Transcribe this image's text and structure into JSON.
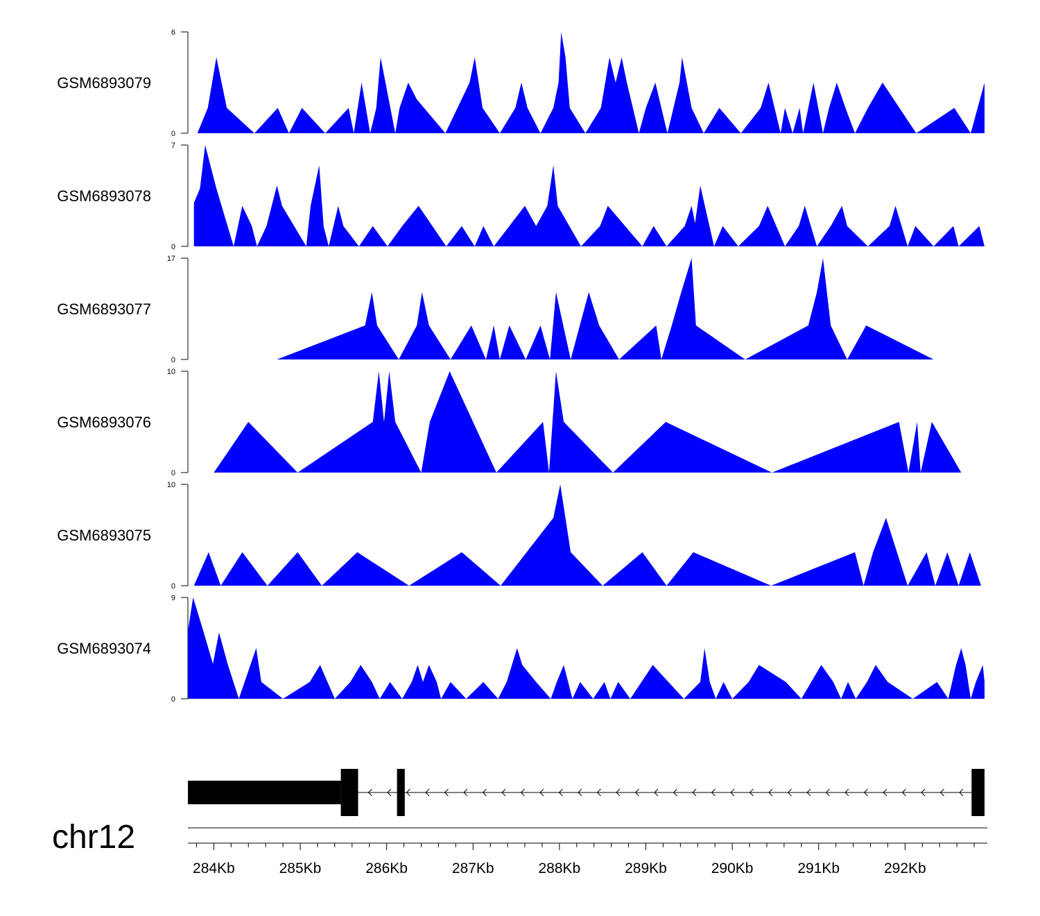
{
  "chart_data": {
    "type": "area",
    "title": "",
    "chromosome": "chr12",
    "x_unit": "bp",
    "xlim": [
      283700,
      292920
    ],
    "x_ticks": [
      284000,
      285000,
      286000,
      287000,
      288000,
      289000,
      290000,
      291000,
      292000
    ],
    "x_tick_labels": [
      "284Kb",
      "285Kb",
      "286Kb",
      "287Kb",
      "288Kb",
      "289Kb",
      "290Kb",
      "291Kb",
      "292Kb"
    ],
    "minor_tick_step": 200,
    "fill_color": "#0000ff",
    "tracks": [
      {
        "name": "GSM6893079",
        "ymax": 6,
        "ymin_label": "0",
        "ymax_label": "6",
        "points": [
          [
            283810,
            0
          ],
          [
            283930,
            1.5
          ],
          [
            284030,
            4.5
          ],
          [
            284150,
            1.5
          ],
          [
            284470,
            0
          ],
          [
            284740,
            1.5
          ],
          [
            284870,
            0
          ],
          [
            285020,
            1.5
          ],
          [
            285290,
            0
          ],
          [
            285560,
            1.5
          ],
          [
            285620,
            0
          ],
          [
            285710,
            3
          ],
          [
            285810,
            0
          ],
          [
            285880,
            1.5
          ],
          [
            285930,
            4.5
          ],
          [
            286100,
            0
          ],
          [
            286150,
            1.5
          ],
          [
            286250,
            3
          ],
          [
            286350,
            2
          ],
          [
            286680,
            0
          ],
          [
            286960,
            3
          ],
          [
            287020,
            4.5
          ],
          [
            287110,
            1.5
          ],
          [
            287310,
            0
          ],
          [
            287490,
            1.5
          ],
          [
            287560,
            3
          ],
          [
            287630,
            1.5
          ],
          [
            287780,
            0
          ],
          [
            287930,
            1.5
          ],
          [
            287990,
            3
          ],
          [
            288020,
            6
          ],
          [
            288070,
            4.5
          ],
          [
            288120,
            1.5
          ],
          [
            288300,
            0
          ],
          [
            288480,
            1.5
          ],
          [
            288580,
            4.5
          ],
          [
            288650,
            3
          ],
          [
            288720,
            4.5
          ],
          [
            288780,
            3
          ],
          [
            288920,
            0
          ],
          [
            289000,
            1.5
          ],
          [
            289110,
            3
          ],
          [
            289250,
            0
          ],
          [
            289390,
            3
          ],
          [
            289420,
            4.5
          ],
          [
            289530,
            1.5
          ],
          [
            289670,
            0
          ],
          [
            289850,
            1.5
          ],
          [
            290100,
            0
          ],
          [
            290330,
            1.5
          ],
          [
            290420,
            3
          ],
          [
            290560,
            0
          ],
          [
            290610,
            1.5
          ],
          [
            290700,
            0
          ],
          [
            290780,
            1.5
          ],
          [
            290820,
            0
          ],
          [
            290940,
            3
          ],
          [
            291050,
            0
          ],
          [
            291120,
            1.5
          ],
          [
            291210,
            3
          ],
          [
            291310,
            1.5
          ],
          [
            291420,
            0
          ],
          [
            291570,
            1.5
          ],
          [
            291740,
            3
          ],
          [
            292130,
            0
          ],
          [
            292570,
            1.5
          ],
          [
            292760,
            0
          ],
          [
            292920,
            3
          ]
        ]
      },
      {
        "name": "GSM6893078",
        "ymax": 7,
        "ymin_label": "0",
        "ymax_label": "7",
        "points": [
          [
            283770,
            3
          ],
          [
            283840,
            4
          ],
          [
            283900,
            7
          ],
          [
            284030,
            4
          ],
          [
            284230,
            0
          ],
          [
            284330,
            2.8
          ],
          [
            284440,
            1.4
          ],
          [
            284500,
            0
          ],
          [
            284610,
            1.4
          ],
          [
            284730,
            4.2
          ],
          [
            284790,
            2.8
          ],
          [
            285070,
            0
          ],
          [
            285120,
            2.8
          ],
          [
            285220,
            5.6
          ],
          [
            285270,
            1.4
          ],
          [
            285330,
            0
          ],
          [
            285440,
            2.8
          ],
          [
            285500,
            1.4
          ],
          [
            285680,
            0
          ],
          [
            285840,
            1.4
          ],
          [
            286010,
            0
          ],
          [
            286180,
            1.4
          ],
          [
            286370,
            2.8
          ],
          [
            286690,
            0
          ],
          [
            286870,
            1.4
          ],
          [
            287020,
            0
          ],
          [
            287120,
            1.4
          ],
          [
            287240,
            0
          ],
          [
            287600,
            2.8
          ],
          [
            287730,
            1.4
          ],
          [
            287860,
            2.8
          ],
          [
            287930,
            5.6
          ],
          [
            287980,
            2.8
          ],
          [
            288250,
            0
          ],
          [
            288470,
            1.4
          ],
          [
            288560,
            2.8
          ],
          [
            288960,
            0
          ],
          [
            289090,
            1.4
          ],
          [
            289240,
            0
          ],
          [
            289450,
            1.4
          ],
          [
            289530,
            2.8
          ],
          [
            289570,
            1.6
          ],
          [
            289630,
            4.2
          ],
          [
            289790,
            0
          ],
          [
            289890,
            1.4
          ],
          [
            290070,
            0
          ],
          [
            290310,
            1.4
          ],
          [
            290410,
            2.8
          ],
          [
            290610,
            0
          ],
          [
            290770,
            1.4
          ],
          [
            290840,
            2.8
          ],
          [
            290910,
            1.4
          ],
          [
            290980,
            0
          ],
          [
            291140,
            1.4
          ],
          [
            291270,
            2.8
          ],
          [
            291330,
            1.4
          ],
          [
            291570,
            0
          ],
          [
            291820,
            1.4
          ],
          [
            291890,
            2.8
          ],
          [
            292030,
            0
          ],
          [
            292120,
            1.4
          ],
          [
            292330,
            0
          ],
          [
            292560,
            1.4
          ],
          [
            292620,
            0
          ],
          [
            292860,
            1.4
          ],
          [
            292920,
            0
          ]
        ]
      },
      {
        "name": "GSM6893077",
        "ymax": 17,
        "ymin_label": "0",
        "ymax_label": "17",
        "points": [
          [
            284730,
            0
          ],
          [
            285750,
            5.7
          ],
          [
            285830,
            11.3
          ],
          [
            285890,
            5.7
          ],
          [
            286140,
            0
          ],
          [
            286350,
            5.7
          ],
          [
            286410,
            11.3
          ],
          [
            286490,
            5.7
          ],
          [
            286740,
            0
          ],
          [
            286980,
            5.7
          ],
          [
            287150,
            0
          ],
          [
            287240,
            5.7
          ],
          [
            287310,
            0
          ],
          [
            287420,
            5.7
          ],
          [
            287610,
            0
          ],
          [
            287780,
            5.7
          ],
          [
            287890,
            0
          ],
          [
            287960,
            11.3
          ],
          [
            288130,
            0
          ],
          [
            288340,
            11.3
          ],
          [
            288460,
            5.7
          ],
          [
            288690,
            0
          ],
          [
            289120,
            5.7
          ],
          [
            289180,
            0
          ],
          [
            289300,
            5.7
          ],
          [
            289410,
            11.3
          ],
          [
            289530,
            17
          ],
          [
            289580,
            5.7
          ],
          [
            290150,
            0
          ],
          [
            290880,
            5.7
          ],
          [
            290980,
            11.3
          ],
          [
            291050,
            17
          ],
          [
            291140,
            5.7
          ],
          [
            291330,
            0
          ],
          [
            291550,
            5.7
          ],
          [
            292330,
            0
          ]
        ]
      },
      {
        "name": "GSM6893076",
        "ymax": 10,
        "ymin_label": "0",
        "ymax_label": "10",
        "points": [
          [
            284000,
            0
          ],
          [
            284400,
            5
          ],
          [
            284970,
            0
          ],
          [
            285840,
            5
          ],
          [
            285910,
            10
          ],
          [
            285970,
            5
          ],
          [
            286030,
            10
          ],
          [
            286100,
            5
          ],
          [
            286400,
            0
          ],
          [
            286500,
            5
          ],
          [
            286730,
            10
          ],
          [
            287270,
            0
          ],
          [
            287810,
            5
          ],
          [
            287880,
            0
          ],
          [
            287960,
            10
          ],
          [
            288050,
            5
          ],
          [
            288620,
            0
          ],
          [
            289230,
            5
          ],
          [
            290460,
            0
          ],
          [
            291930,
            5
          ],
          [
            292040,
            0
          ],
          [
            292140,
            5
          ],
          [
            292180,
            0
          ],
          [
            292310,
            5
          ],
          [
            292650,
            0
          ]
        ]
      },
      {
        "name": "GSM6893075",
        "ymax": 10,
        "ymin_label": "0",
        "ymax_label": "10",
        "points": [
          [
            283770,
            0
          ],
          [
            283940,
            3.3
          ],
          [
            284080,
            0
          ],
          [
            284330,
            3.3
          ],
          [
            284620,
            0
          ],
          [
            284970,
            3.3
          ],
          [
            285250,
            0
          ],
          [
            285660,
            3.3
          ],
          [
            286260,
            0
          ],
          [
            286870,
            3.3
          ],
          [
            287320,
            0
          ],
          [
            287930,
            6.7
          ],
          [
            288010,
            10
          ],
          [
            288130,
            3.3
          ],
          [
            288500,
            0
          ],
          [
            288960,
            3.3
          ],
          [
            289240,
            0
          ],
          [
            289550,
            3.3
          ],
          [
            290450,
            0
          ],
          [
            291420,
            3.3
          ],
          [
            291520,
            0
          ],
          [
            291630,
            3.3
          ],
          [
            291780,
            6.7
          ],
          [
            292030,
            0
          ],
          [
            292250,
            3.3
          ],
          [
            292350,
            0
          ],
          [
            292490,
            3.3
          ],
          [
            292620,
            0
          ],
          [
            292750,
            3.3
          ],
          [
            292880,
            0
          ]
        ]
      },
      {
        "name": "GSM6893074",
        "ymax": 9,
        "ymin_label": "0",
        "ymax_label": "9",
        "points": [
          [
            283700,
            6
          ],
          [
            283760,
            9
          ],
          [
            283880,
            6
          ],
          [
            283990,
            3.1
          ],
          [
            284060,
            5.9
          ],
          [
            284160,
            3.1
          ],
          [
            284290,
            0
          ],
          [
            284490,
            4.5
          ],
          [
            284550,
            1.5
          ],
          [
            284800,
            0
          ],
          [
            285110,
            1.5
          ],
          [
            285230,
            3
          ],
          [
            285400,
            0
          ],
          [
            285580,
            1.5
          ],
          [
            285700,
            3
          ],
          [
            285830,
            1.5
          ],
          [
            285920,
            0
          ],
          [
            286040,
            1.5
          ],
          [
            286180,
            0
          ],
          [
            286290,
            1.5
          ],
          [
            286360,
            3
          ],
          [
            286420,
            1.5
          ],
          [
            286490,
            3
          ],
          [
            286580,
            1.5
          ],
          [
            286630,
            0
          ],
          [
            286740,
            1.5
          ],
          [
            286920,
            0
          ],
          [
            287120,
            1.5
          ],
          [
            287290,
            0
          ],
          [
            287390,
            1.5
          ],
          [
            287510,
            4.5
          ],
          [
            287570,
            3
          ],
          [
            287730,
            1.5
          ],
          [
            287900,
            0
          ],
          [
            287970,
            1.5
          ],
          [
            288050,
            3
          ],
          [
            288150,
            0
          ],
          [
            288240,
            1.5
          ],
          [
            288390,
            0
          ],
          [
            288520,
            1.5
          ],
          [
            288590,
            0
          ],
          [
            288680,
            1.5
          ],
          [
            288820,
            0
          ],
          [
            289080,
            3
          ],
          [
            289440,
            0
          ],
          [
            289630,
            1.5
          ],
          [
            289680,
            4.5
          ],
          [
            289740,
            1.5
          ],
          [
            289810,
            0
          ],
          [
            289900,
            1.5
          ],
          [
            290000,
            0
          ],
          [
            290190,
            1.5
          ],
          [
            290310,
            3
          ],
          [
            290620,
            1.5
          ],
          [
            290800,
            0
          ],
          [
            291030,
            3
          ],
          [
            291170,
            1.5
          ],
          [
            291260,
            0
          ],
          [
            291340,
            1.5
          ],
          [
            291430,
            0
          ],
          [
            291560,
            1.5
          ],
          [
            291660,
            3
          ],
          [
            291800,
            1.5
          ],
          [
            292090,
            0
          ],
          [
            292370,
            1.5
          ],
          [
            292500,
            0
          ],
          [
            292590,
            3
          ],
          [
            292650,
            4.5
          ],
          [
            292700,
            3
          ],
          [
            292760,
            0
          ],
          [
            292820,
            1.5
          ],
          [
            292900,
            3
          ],
          [
            292920,
            1.5
          ]
        ]
      }
    ],
    "gene_model": {
      "strand": "-",
      "blocks": [
        {
          "start": 283700,
          "end": 285470,
          "type": "utr"
        },
        {
          "start": 285470,
          "end": 285670,
          "type": "cds"
        },
        {
          "start": 286120,
          "end": 286210,
          "type": "cds"
        },
        {
          "start": 292770,
          "end": 292920,
          "type": "cds"
        }
      ],
      "intron": [
        285670,
        292770
      ]
    }
  }
}
